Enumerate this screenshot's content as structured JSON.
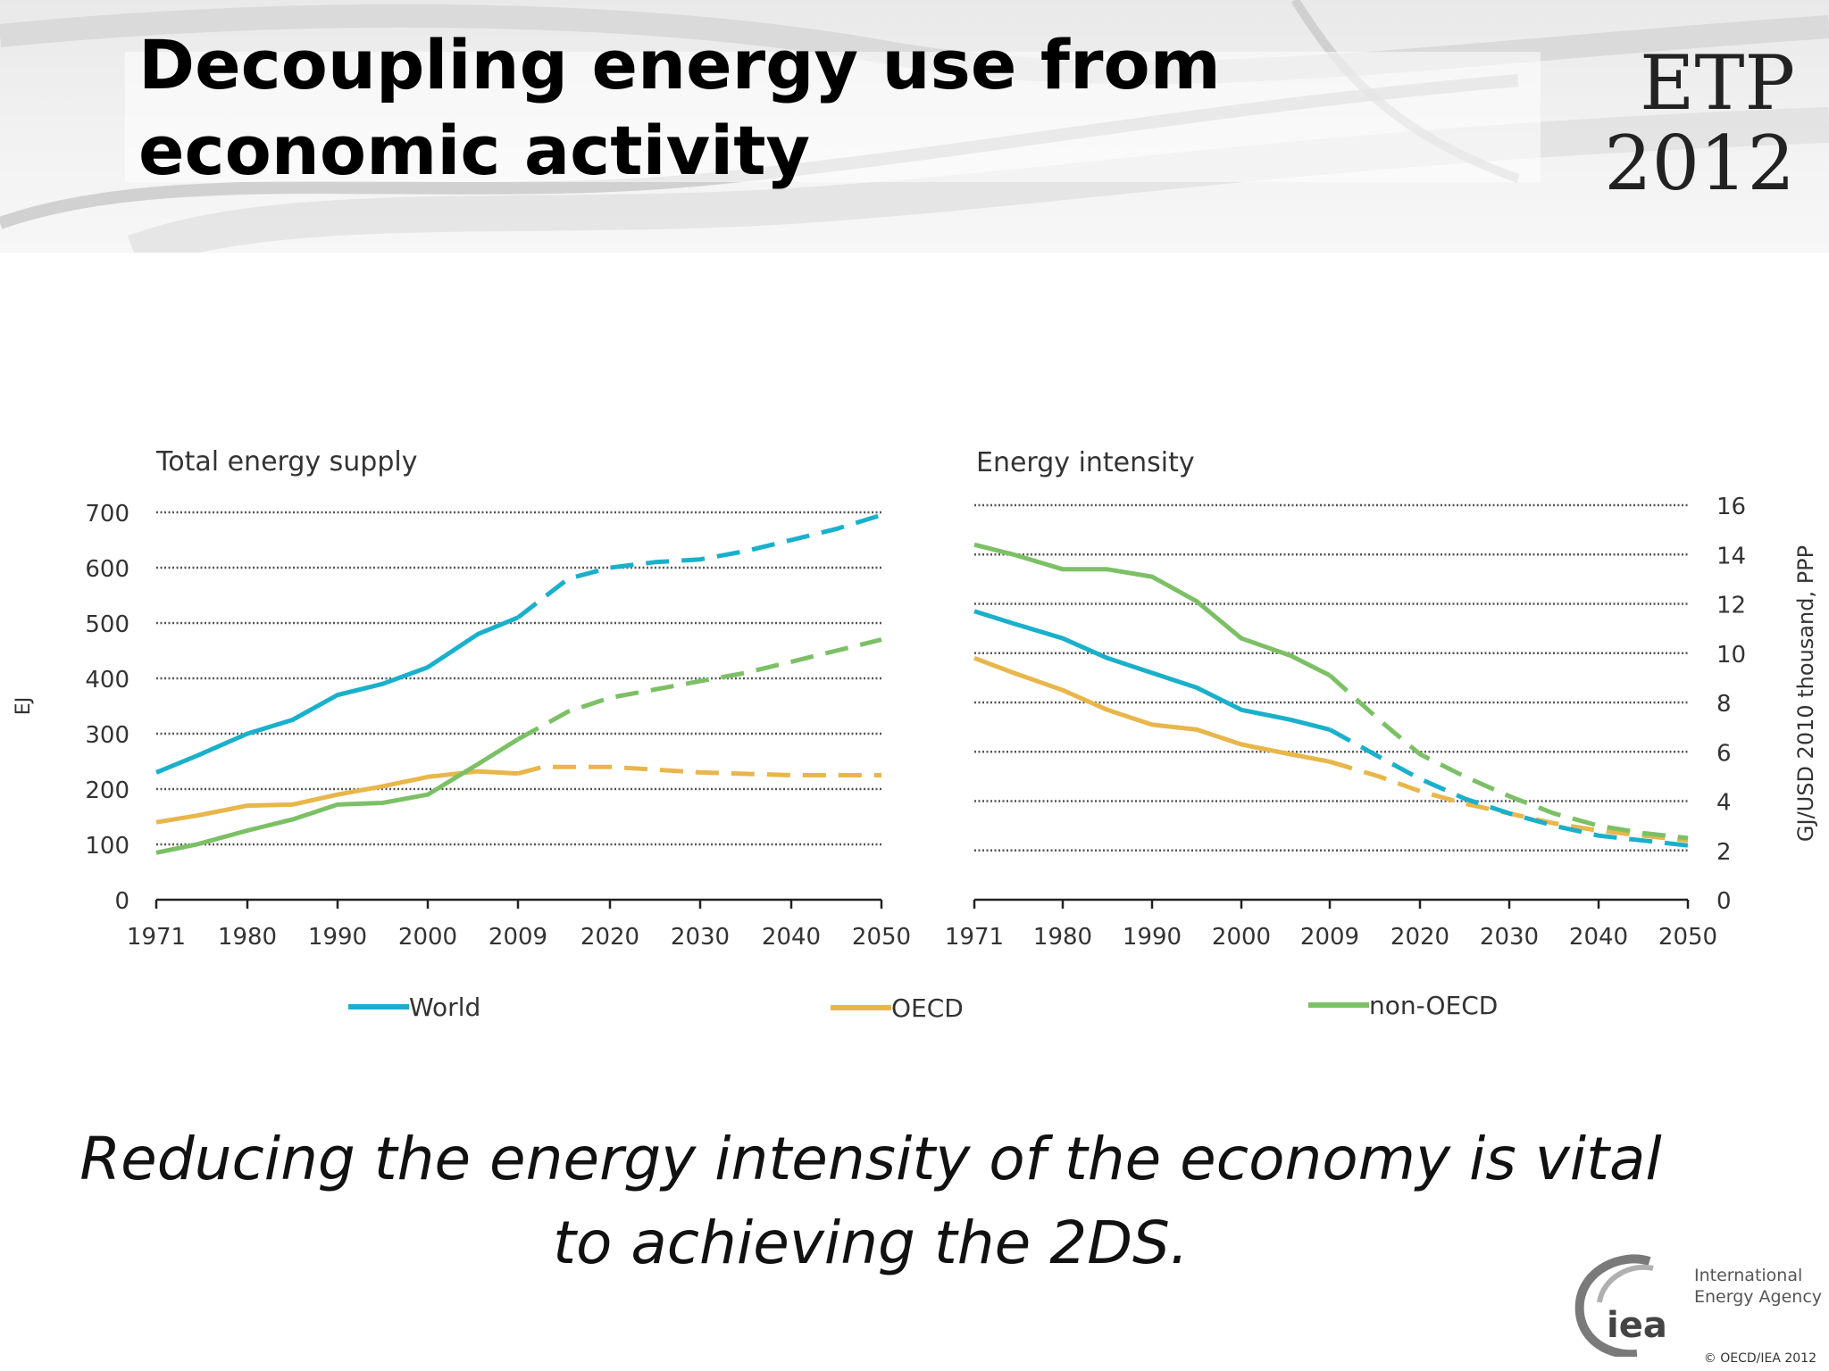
{
  "slide": {
    "title": "Decoupling energy use from economic activity",
    "logo_top": "ETP",
    "logo_bottom": "2012",
    "caption_line1": "Reducing the energy intensity of the economy is vital",
    "caption_line2": "to achieving the 2DS.",
    "iea_mark": "iea",
    "iea_name_line1": "International",
    "iea_name_line2": "Energy Agency",
    "copyright": "© OECD/IEA 2012"
  },
  "colors": {
    "World": "#1ab0cb",
    "OECD": "#e8b64a",
    "non-OECD": "#7cc066"
  },
  "chart_data": [
    {
      "type": "line",
      "title": "Total energy supply",
      "xlabel": "",
      "ylabel": "EJ",
      "x_ticks": [
        "1971",
        "1980",
        "1990",
        "2000",
        "2009",
        "2020",
        "2030",
        "2040",
        "2050"
      ],
      "y_ticks": [
        "0",
        "100",
        "200",
        "300",
        "400",
        "500",
        "600",
        "700"
      ],
      "ylim": [
        0,
        700
      ],
      "grid": true,
      "historical_solid_projection_dashed": true,
      "series": [
        {
          "name": "World",
          "historical": [
            [
              1971,
              230
            ],
            [
              1975,
              260
            ],
            [
              1980,
              300
            ],
            [
              1985,
              325
            ],
            [
              1990,
              370
            ],
            [
              1995,
              390
            ],
            [
              2000,
              420
            ],
            [
              2005,
              480
            ],
            [
              2009,
              510
            ]
          ],
          "projection": [
            [
              2009,
              510
            ],
            [
              2012,
              545
            ],
            [
              2015,
              580
            ],
            [
              2020,
              600
            ],
            [
              2025,
              610
            ],
            [
              2030,
              615
            ],
            [
              2035,
              630
            ],
            [
              2040,
              650
            ],
            [
              2045,
              670
            ],
            [
              2050,
              695
            ]
          ]
        },
        {
          "name": "OECD",
          "historical": [
            [
              1971,
              140
            ],
            [
              1975,
              152
            ],
            [
              1980,
              170
            ],
            [
              1985,
              172
            ],
            [
              1990,
              190
            ],
            [
              1995,
              205
            ],
            [
              2000,
              222
            ],
            [
              2005,
              232
            ],
            [
              2009,
              228
            ]
          ],
          "projection": [
            [
              2009,
              228
            ],
            [
              2012,
              240
            ],
            [
              2020,
              240
            ],
            [
              2030,
              230
            ],
            [
              2040,
              225
            ],
            [
              2050,
              225
            ]
          ]
        },
        {
          "name": "non-OECD",
          "historical": [
            [
              1971,
              85
            ],
            [
              1975,
              100
            ],
            [
              1980,
              125
            ],
            [
              1985,
              145
            ],
            [
              1990,
              172
            ],
            [
              1995,
              175
            ],
            [
              2000,
              190
            ],
            [
              2005,
              245
            ],
            [
              2009,
              290
            ]
          ],
          "projection": [
            [
              2009,
              290
            ],
            [
              2015,
              340
            ],
            [
              2020,
              365
            ],
            [
              2025,
              380
            ],
            [
              2030,
              395
            ],
            [
              2035,
              410
            ],
            [
              2040,
              430
            ],
            [
              2045,
              450
            ],
            [
              2050,
              470
            ]
          ]
        }
      ]
    },
    {
      "type": "line",
      "title": "Energy intensity",
      "xlabel": "",
      "ylabel": "GJ/USD 2010 thousand, PPP",
      "y_axis_side": "right",
      "x_ticks": [
        "1971",
        "1980",
        "1990",
        "2000",
        "2009",
        "2020",
        "2030",
        "2040",
        "2050"
      ],
      "y_ticks": [
        "0",
        "2",
        "4",
        "6",
        "8",
        "10",
        "12",
        "14",
        "16"
      ],
      "ylim": [
        0,
        16
      ],
      "grid": true,
      "historical_solid_projection_dashed": true,
      "series": [
        {
          "name": "World",
          "historical": [
            [
              1971,
              11.7
            ],
            [
              1975,
              11.2
            ],
            [
              1980,
              10.6
            ],
            [
              1985,
              9.8
            ],
            [
              1990,
              9.2
            ],
            [
              1995,
              8.6
            ],
            [
              2000,
              7.7
            ],
            [
              2005,
              7.3
            ],
            [
              2009,
              6.9
            ]
          ],
          "projection": [
            [
              2009,
              6.9
            ],
            [
              2015,
              5.8
            ],
            [
              2020,
              4.9
            ],
            [
              2025,
              4.1
            ],
            [
              2030,
              3.5
            ],
            [
              2035,
              3.0
            ],
            [
              2040,
              2.6
            ],
            [
              2045,
              2.4
            ],
            [
              2050,
              2.2
            ]
          ]
        },
        {
          "name": "OECD",
          "historical": [
            [
              1971,
              9.8
            ],
            [
              1975,
              9.2
            ],
            [
              1980,
              8.5
            ],
            [
              1985,
              7.7
            ],
            [
              1990,
              7.1
            ],
            [
              1995,
              6.9
            ],
            [
              2000,
              6.3
            ],
            [
              2005,
              5.9
            ],
            [
              2009,
              5.6
            ]
          ],
          "projection": [
            [
              2009,
              5.6
            ],
            [
              2015,
              5.0
            ],
            [
              2020,
              4.4
            ],
            [
              2025,
              3.9
            ],
            [
              2030,
              3.5
            ],
            [
              2035,
              3.1
            ],
            [
              2040,
              2.8
            ],
            [
              2045,
              2.6
            ],
            [
              2050,
              2.4
            ]
          ]
        },
        {
          "name": "non-OECD",
          "historical": [
            [
              1971,
              14.4
            ],
            [
              1975,
              14.0
            ],
            [
              1980,
              13.4
            ],
            [
              1985,
              13.4
            ],
            [
              1990,
              13.1
            ],
            [
              1995,
              12.1
            ],
            [
              2000,
              10.6
            ],
            [
              2005,
              9.9
            ],
            [
              2009,
              9.1
            ]
          ],
          "projection": [
            [
              2009,
              9.1
            ],
            [
              2015,
              7.3
            ],
            [
              2020,
              5.9
            ],
            [
              2025,
              5.0
            ],
            [
              2030,
              4.2
            ],
            [
              2035,
              3.5
            ],
            [
              2040,
              3.0
            ],
            [
              2045,
              2.7
            ],
            [
              2050,
              2.5
            ]
          ]
        }
      ]
    }
  ],
  "legend": [
    "World",
    "OECD",
    "non-OECD"
  ]
}
